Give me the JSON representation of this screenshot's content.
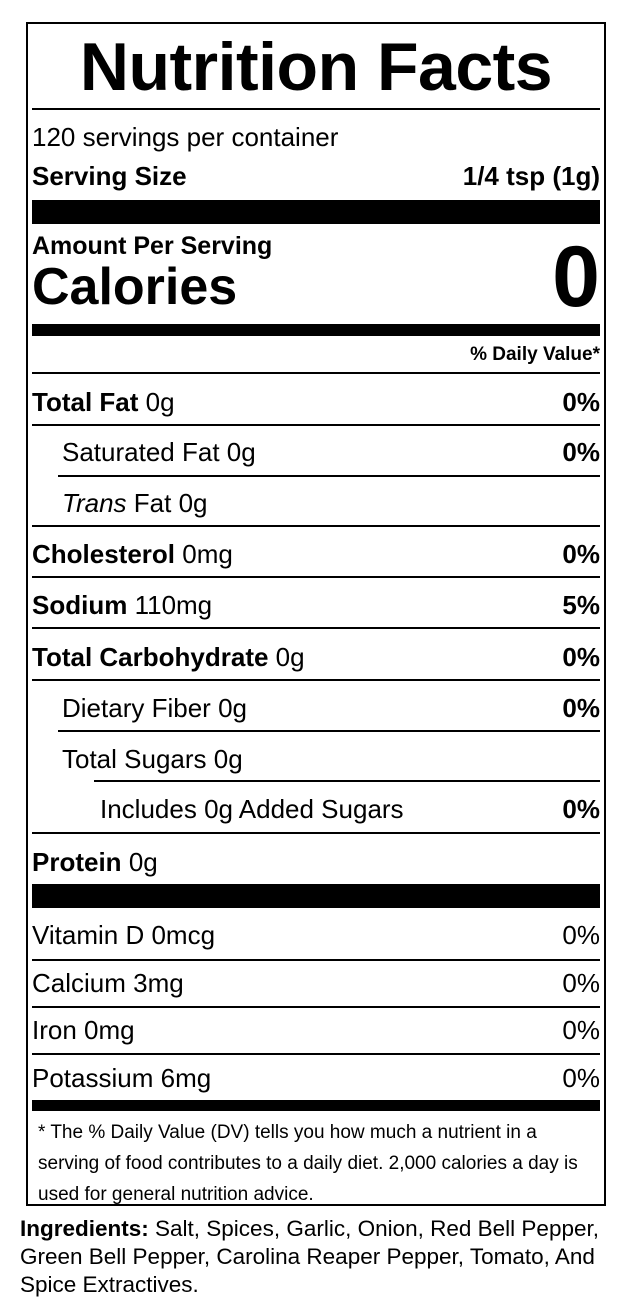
{
  "title": "Nutrition Facts",
  "servings_per_container": "120 servings per container",
  "serving_size_label": "Serving Size",
  "serving_size_value": "1/4 tsp (1g)",
  "amount_per_serving": "Amount Per Serving",
  "calories_label": "Calories",
  "calories_value": "0",
  "daily_value_header": "% Daily Value*",
  "nutrients": [
    {
      "name": "Total Fat",
      "amount": "0g",
      "dv": "0%"
    },
    {
      "name": "Saturated Fat",
      "amount": "0g",
      "dv": "0%"
    },
    {
      "name": "Trans",
      "name_suffix": "Fat",
      "amount": "0g",
      "dv": ""
    },
    {
      "name": "Cholesterol",
      "amount": "0mg",
      "dv": "0%"
    },
    {
      "name": "Sodium",
      "amount": "110mg",
      "dv": "5%"
    },
    {
      "name": "Total Carbohydrate",
      "amount": "0g",
      "dv": "0%"
    },
    {
      "name": "Dietary Fiber",
      "amount": "0g",
      "dv": "0%"
    },
    {
      "name": "Total Sugars",
      "amount": "0g",
      "dv": ""
    },
    {
      "name": "Includes 0g Added Sugars",
      "amount": "",
      "dv": "0%"
    },
    {
      "name": "Protein",
      "amount": "0g",
      "dv": ""
    }
  ],
  "vitamins": [
    {
      "name": "Vitamin D 0mcg",
      "dv": "0%"
    },
    {
      "name": "Calcium 3mg",
      "dv": "0%"
    },
    {
      "name": "Iron 0mg",
      "dv": "0%"
    },
    {
      "name": "Potassium 6mg",
      "dv": "0%"
    }
  ],
  "footnote": "* The % Daily Value (DV) tells you how much a nutrient in a serving of food contributes to a daily diet. 2,000 calories a day is used for general nutrition advice.",
  "ingredients_label": "Ingredients:",
  "ingredients_text": " Salt, Spices, Garlic, Onion, Red Bell Pepper, Green Bell Pepper, Carolina Reaper Pepper, Tomato, And Spice Extractives."
}
